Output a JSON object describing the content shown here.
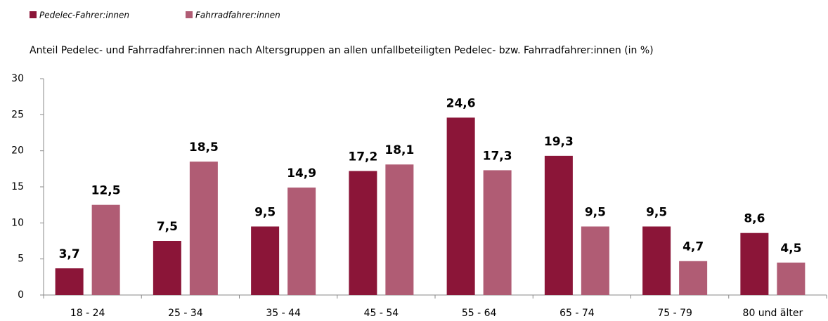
{
  "chart_data": {
    "type": "bar",
    "title": "Anteil Pedelec- und Fahrradfahrer:innen nach Altersgruppen an allen unfallbeteiligten Pedelec- bzw. Fahrradfahrer:innen (in %)",
    "categories": [
      "18 - 24",
      "25 - 34",
      "35 - 44",
      "45 - 54",
      "55 - 64",
      "65 - 74",
      "75 - 79",
      "80 und älter"
    ],
    "series": [
      {
        "name": "Pedelec-Fahrer:innen",
        "color": "#8b1538",
        "values": [
          3.7,
          7.5,
          9.5,
          17.2,
          24.6,
          19.3,
          9.5,
          8.6
        ],
        "value_labels": [
          "3,7",
          "7,5",
          "9,5",
          "17,2",
          "24,6",
          "19,3",
          "9,5",
          "8,6"
        ]
      },
      {
        "name": "Fahrradfahrer:innen",
        "color": "#b05c74",
        "values": [
          12.5,
          18.5,
          14.9,
          18.1,
          17.3,
          9.5,
          4.7,
          4.5
        ],
        "value_labels": [
          "12,5",
          "18,5",
          "14,9",
          "18,1",
          "17,3",
          "9,5",
          "4,7",
          "4,5"
        ]
      }
    ],
    "ylim": [
      0,
      30
    ],
    "yticks": [
      0,
      5,
      10,
      15,
      20,
      25,
      30
    ],
    "grid": false,
    "legend": "top-left"
  }
}
